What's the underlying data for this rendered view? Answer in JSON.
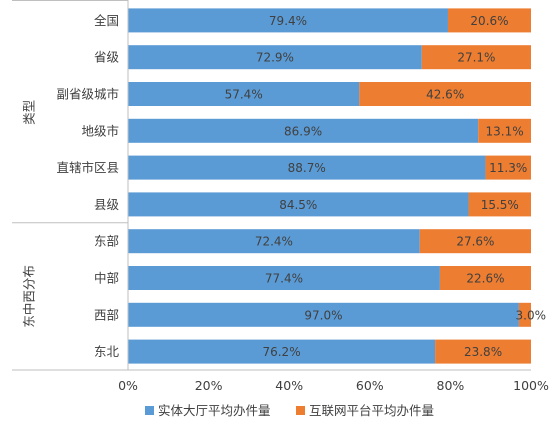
{
  "chart_data": {
    "type": "bar",
    "orientation": "horizontal",
    "stacked": "percent",
    "groups": [
      {
        "label": "类型",
        "categories": [
          "全国",
          "省级",
          "副省级城市",
          "地级市",
          "直辖市区县",
          "县级"
        ]
      },
      {
        "label": "东中西分布",
        "categories": [
          "东部",
          "中部",
          "西部",
          "东北"
        ]
      }
    ],
    "categories": [
      "全国",
      "省级",
      "副省级城市",
      "地级市",
      "直辖市区县",
      "县级",
      "东部",
      "中部",
      "西部",
      "东北"
    ],
    "series": [
      {
        "name": "实体大厅平均办件量",
        "color": "#5B9BD5",
        "values": [
          79.4,
          72.9,
          57.4,
          86.9,
          88.7,
          84.5,
          72.4,
          77.4,
          97.0,
          76.2
        ],
        "labels": [
          "79.4%",
          "72.9%",
          "57.4%",
          "86.9%",
          "88.7%",
          "84.5%",
          "72.4%",
          "77.4%",
          "97.0%",
          "76.2%"
        ]
      },
      {
        "name": "互联网平台平均办件量",
        "color": "#ED7D31",
        "values": [
          20.6,
          27.1,
          42.6,
          13.1,
          11.3,
          15.5,
          27.6,
          22.6,
          3.0,
          23.8
        ],
        "labels": [
          "20.6%",
          "27.1%",
          "42.6%",
          "13.1%",
          "11.3%",
          "15.5%",
          "27.6%",
          "22.6%",
          "3.0%",
          "23.8%"
        ]
      }
    ],
    "xlim": [
      0,
      100
    ],
    "xticks": [
      "0%",
      "20%",
      "40%",
      "60%",
      "80%",
      "100%"
    ],
    "grid": false,
    "legend": "bottom"
  }
}
